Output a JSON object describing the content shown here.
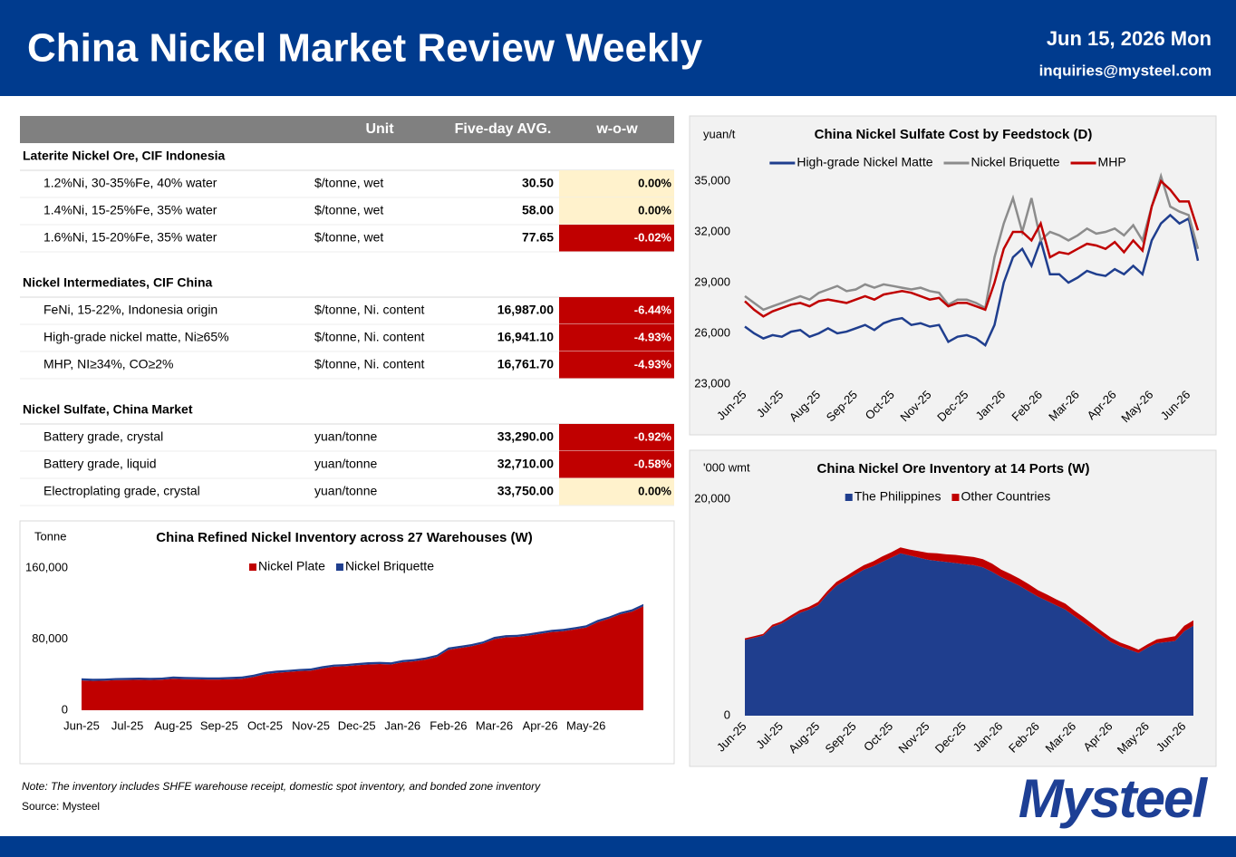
{
  "header": {
    "title": "China Nickel Market Review Weekly",
    "date": "Jun 15, 2026 Mon",
    "email": "inquiries@mysteel.com"
  },
  "table": {
    "columns": [
      "Unit",
      "Five-day AVG.",
      "w-o-w"
    ],
    "sections": [
      {
        "title": "Laterite Nickel Ore, CIF Indonesia",
        "rows": [
          [
            "1.2%Ni, 30-35%Fe, 40% water",
            "$/tonne, wet",
            "30.50",
            "0.00%"
          ],
          [
            "1.4%Ni, 15-25%Fe, 35% water",
            "$/tonne, wet",
            "58.00",
            "0.00%"
          ],
          [
            "1.6%Ni, 15-20%Fe, 35% water",
            "$/tonne, wet",
            "77.65",
            "-0.02%"
          ]
        ]
      },
      {
        "title": "Nickel Intermediates, CIF China",
        "rows": [
          [
            "FeNi, 15-22%, Indonesia origin",
            "$/tonne, Ni. content",
            "16,987.00",
            "-6.44%"
          ],
          [
            "High-grade nickel matte, Ni≥65%",
            "$/tonne, Ni. content",
            "16,941.10",
            "-4.93%"
          ],
          [
            "MHP, NI≥34%, CO≥2%",
            "$/tonne, Ni. content",
            "16,761.70",
            "-4.93%"
          ]
        ]
      },
      {
        "title": "Nickel Sulfate, China Market",
        "rows": [
          [
            "Battery grade, crystal",
            "yuan/tonne",
            "33,290.00",
            "-0.92%"
          ],
          [
            "Battery grade, liquid",
            "yuan/tonne",
            "32,710.00",
            "-0.58%"
          ],
          [
            "Electroplating grade, crystal",
            "yuan/tonne",
            "33,750.00",
            "0.00%"
          ]
        ]
      }
    ]
  },
  "chart_data": [
    {
      "type": "line",
      "title": "China Nickel Sulfate Cost by Feedstock (D)",
      "y_label": "yuan/t",
      "categories": [
        "Jun-25",
        null,
        null,
        null,
        "Jul-25",
        null,
        null,
        null,
        "Aug-25",
        null,
        null,
        null,
        "Sep-25",
        null,
        null,
        null,
        "Oct-25",
        null,
        null,
        null,
        "Nov-25",
        null,
        null,
        null,
        "Dec-25",
        null,
        null,
        null,
        "Jan-26",
        null,
        null,
        null,
        "Feb-26",
        null,
        null,
        null,
        "Mar-26",
        null,
        null,
        null,
        "Apr-26",
        null,
        null,
        null,
        "May-26",
        null,
        null,
        null,
        "Jun-26",
        null
      ],
      "ylim": [
        23000,
        35500
      ],
      "yticks": [
        {
          "value": 23000,
          "label": "23,000"
        },
        {
          "value": 26000,
          "label": "26,000"
        },
        {
          "value": 29000,
          "label": "29,000"
        },
        {
          "value": 32000,
          "label": "32,000"
        },
        {
          "value": 35000,
          "label": "35,000"
        }
      ],
      "series": [
        {
          "name": "High-grade Nickel Matte",
          "color": "#1f3e8e",
          "values": [
            26400,
            26000,
            25700,
            25900,
            25800,
            26100,
            26200,
            25800,
            26000,
            26300,
            26000,
            26100,
            26300,
            26500,
            26200,
            26600,
            26800,
            26900,
            26500,
            26600,
            26400,
            26500,
            25500,
            25800,
            25900,
            25700,
            25300,
            26500,
            29000,
            30500,
            31000,
            30000,
            31500,
            29500,
            29500,
            29000,
            29300,
            29700,
            29500,
            29400,
            29800,
            29500,
            30000,
            29500,
            31500,
            32500,
            33000,
            32500,
            32800,
            30300
          ]
        },
        {
          "name": "Nickel Briquette",
          "color": "#8c8c8c",
          "values": [
            28200,
            27800,
            27400,
            27600,
            27800,
            28000,
            28200,
            28000,
            28400,
            28600,
            28800,
            28500,
            28600,
            28900,
            28700,
            28900,
            28800,
            28700,
            28600,
            28700,
            28500,
            28400,
            27700,
            28000,
            28000,
            27800,
            27500,
            30500,
            32500,
            34000,
            32000,
            34000,
            31500,
            32000,
            31800,
            31500,
            31800,
            32200,
            31900,
            32000,
            32200,
            31800,
            32400,
            31500,
            33500,
            35300,
            33500,
            33200,
            33000,
            31000
          ]
        },
        {
          "name": "MHP",
          "color": "#c00000",
          "values": [
            27900,
            27400,
            27000,
            27300,
            27500,
            27700,
            27800,
            27600,
            27900,
            28000,
            27900,
            27800,
            28000,
            28200,
            28000,
            28300,
            28400,
            28500,
            28400,
            28200,
            28000,
            28100,
            27600,
            27800,
            27800,
            27600,
            27400,
            29000,
            31000,
            32000,
            32000,
            31500,
            32500,
            30500,
            30800,
            30700,
            31000,
            31300,
            31200,
            31000,
            31400,
            30800,
            31500,
            30900,
            33500,
            35000,
            34500,
            33800,
            33800,
            32100
          ]
        }
      ]
    },
    {
      "type": "area",
      "title": "China Nickel Ore Inventory at 14 Ports (W)",
      "y_label": "'000 wmt",
      "categories": [
        "Jun-25",
        null,
        null,
        null,
        "Jul-25",
        null,
        null,
        null,
        "Aug-25",
        null,
        null,
        null,
        "Sep-25",
        null,
        null,
        null,
        "Oct-25",
        null,
        null,
        null,
        "Nov-25",
        null,
        null,
        null,
        "Dec-25",
        null,
        null,
        null,
        "Jan-26",
        null,
        null,
        null,
        "Feb-26",
        null,
        null,
        null,
        "Mar-26",
        null,
        null,
        null,
        "Apr-26",
        null,
        null,
        null,
        "May-26",
        null,
        null,
        null,
        "Jun-26",
        null
      ],
      "ylim": [
        0,
        20000
      ],
      "yticks": [
        0,
        {
          "value": 20000,
          "label": "20,000"
        }
      ],
      "series": [
        {
          "name": "The Philippines",
          "color": "#1f3e8e",
          "values": [
            7000,
            7200,
            7400,
            8200,
            8500,
            9000,
            9500,
            9800,
            10200,
            11200,
            12000,
            12500,
            13000,
            13500,
            13800,
            14200,
            14600,
            15000,
            14800,
            14600,
            14400,
            14300,
            14200,
            14100,
            14000,
            13900,
            13700,
            13300,
            12800,
            12400,
            12000,
            11500,
            11000,
            10600,
            10200,
            9800,
            9200,
            8600,
            8000,
            7400,
            6800,
            6400,
            6100,
            5800,
            6300,
            6700,
            6800,
            6900,
            7800,
            8300
          ]
        },
        {
          "name": "Other Countries",
          "color": "#c00000",
          "values": [
            150,
            150,
            150,
            200,
            200,
            250,
            250,
            250,
            300,
            300,
            350,
            350,
            400,
            400,
            450,
            500,
            500,
            550,
            550,
            600,
            650,
            700,
            700,
            750,
            750,
            750,
            750,
            750,
            700,
            700,
            650,
            650,
            600,
            600,
            550,
            550,
            500,
            500,
            450,
            400,
            400,
            350,
            350,
            300,
            300,
            350,
            400,
            450,
            500,
            500
          ]
        }
      ]
    },
    {
      "type": "area",
      "title": "China Refined Nickel Inventory across 27 Warehouses (W)",
      "y_label": "Tonne",
      "categories": [
        "Jun-25",
        null,
        null,
        null,
        "Jul-25",
        null,
        null,
        null,
        "Aug-25",
        null,
        null,
        null,
        "Sep-25",
        null,
        null,
        null,
        "Oct-25",
        null,
        null,
        null,
        "Nov-25",
        null,
        null,
        null,
        "Dec-25",
        null,
        null,
        null,
        "Jan-26",
        null,
        null,
        null,
        "Feb-26",
        null,
        null,
        null,
        "Mar-26",
        null,
        null,
        null,
        "Apr-26",
        null,
        null,
        null,
        "May-26",
        null,
        null,
        null,
        null,
        null
      ],
      "ylim": [
        0,
        160000
      ],
      "yticks": [
        0,
        {
          "value": 80000,
          "label": "80,000"
        },
        {
          "value": 160000,
          "label": "160,000"
        }
      ],
      "series": [
        {
          "name": "Nickel Plate",
          "color": "#c00000",
          "values": [
            33500,
            33000,
            33200,
            33800,
            34000,
            34200,
            34000,
            34300,
            35500,
            35000,
            34800,
            34500,
            34500,
            35000,
            35500,
            37500,
            40500,
            42000,
            43000,
            44000,
            44500,
            47000,
            49000,
            49500,
            50500,
            51500,
            52000,
            51500,
            54000,
            55000,
            57000,
            60000,
            68000,
            70000,
            72000,
            75000,
            80000,
            82000,
            82500,
            84000,
            86000,
            88000,
            89000,
            91000,
            93000,
            99000,
            103000,
            108000,
            111000,
            117000
          ]
        },
        {
          "name": "Nickel Briquette",
          "color": "#1f3e8e",
          "values": [
            2500,
            2500,
            2400,
            2400,
            2500,
            2500,
            2400,
            2400,
            2500,
            2500,
            2400,
            2400,
            2500,
            2500,
            2400,
            2400,
            2500,
            2500,
            2400,
            2400,
            2500,
            2500,
            2400,
            2400,
            2500,
            2500,
            2400,
            2400,
            2500,
            2500,
            2400,
            2400,
            2500,
            2500,
            2400,
            2400,
            2500,
            2500,
            2400,
            2400,
            2500,
            2500,
            2400,
            2400,
            2500,
            2500,
            2400,
            2400,
            2500,
            2500
          ]
        }
      ]
    }
  ],
  "note": "Note: The inventory includes SHFE warehouse receipt, domestic spot inventory, and bonded zone inventory",
  "source": "Source: Mysteel",
  "logo": "Mysteel"
}
